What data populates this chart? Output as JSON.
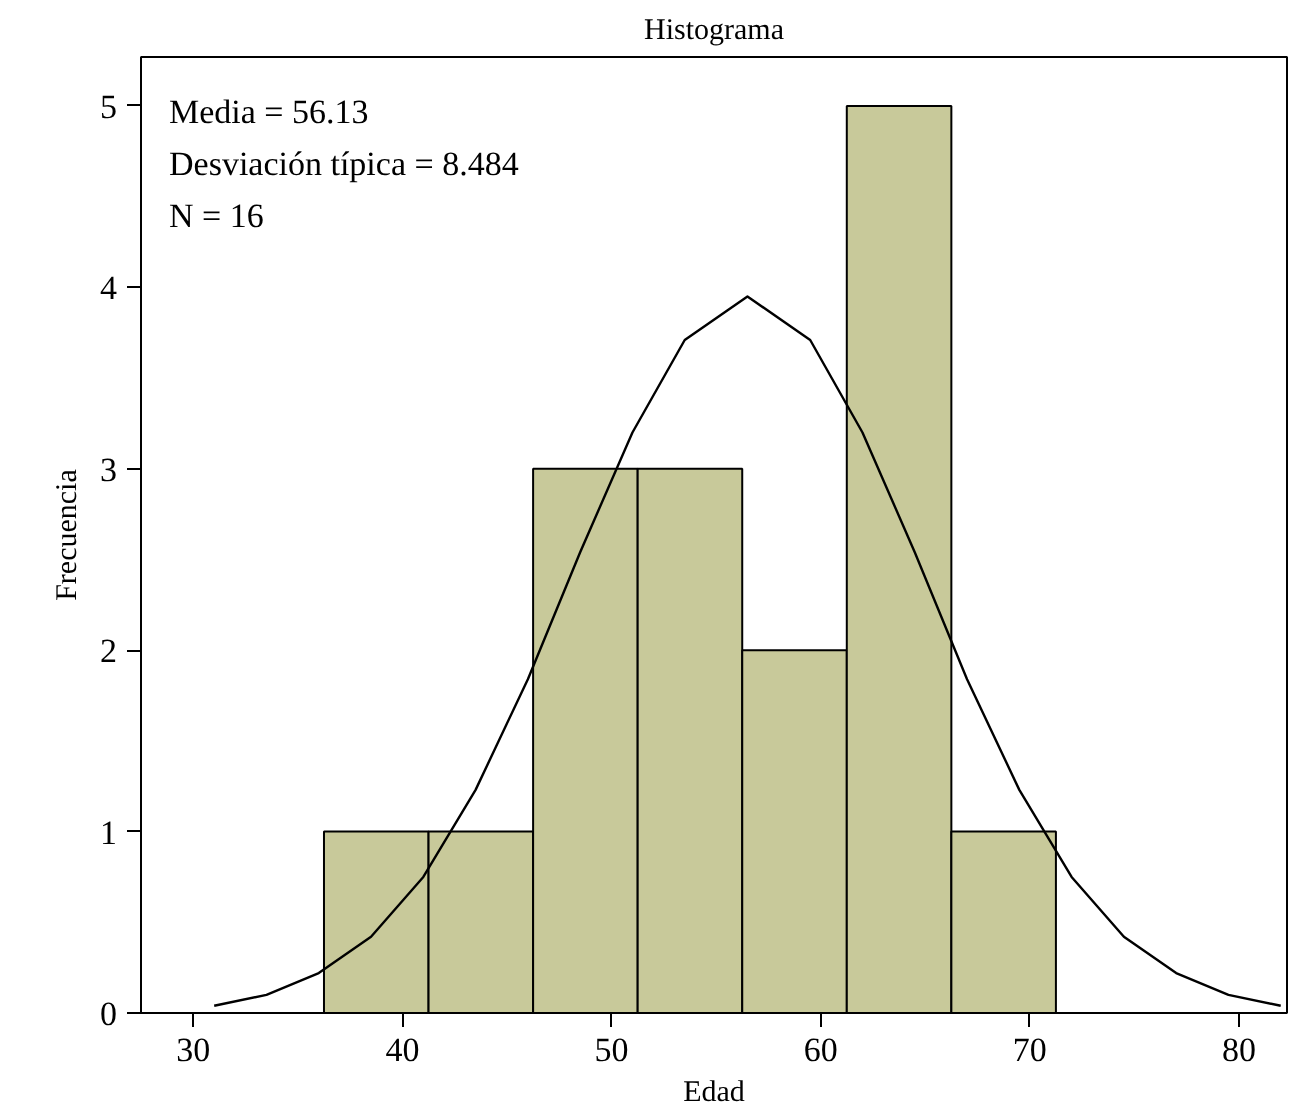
{
  "chart_data": {
    "type": "histogram",
    "title": "Histograma",
    "xlabel": "Edad",
    "ylabel": "Frecuencia",
    "bins": [
      36.25,
      41.25,
      46.25,
      51.25,
      56.25,
      61.25,
      66.25,
      71.25
    ],
    "values": [
      1,
      1,
      3,
      3,
      2,
      5,
      1
    ],
    "color": "#c8c99a",
    "series": [
      {
        "type": "line",
        "color": "#000000",
        "x": [
          31,
          33.5,
          36,
          38.5,
          41,
          43.5,
          46,
          48.5,
          51,
          53.5,
          56.5,
          59.5,
          62,
          64.5,
          67,
          69.5,
          72,
          74.5,
          77,
          79.5,
          82
        ],
        "values": [
          0.04,
          0.1,
          0.22,
          0.42,
          0.75,
          1.23,
          1.84,
          2.54,
          3.2,
          3.71,
          3.95,
          3.71,
          3.2,
          2.54,
          1.84,
          1.23,
          0.75,
          0.42,
          0.22,
          0.1,
          0.04
        ]
      }
    ],
    "annotations": [
      "Media = 56.13",
      "Desviación típica = 8.484",
      "N = 16"
    ],
    "xlim": [
      27.5,
      82.3
    ],
    "ylim": [
      0,
      5.27
    ],
    "xticks": [
      30,
      40,
      50,
      60,
      70,
      80
    ],
    "yticks": [
      0,
      1,
      2,
      3,
      4,
      5
    ],
    "grid": false
  }
}
